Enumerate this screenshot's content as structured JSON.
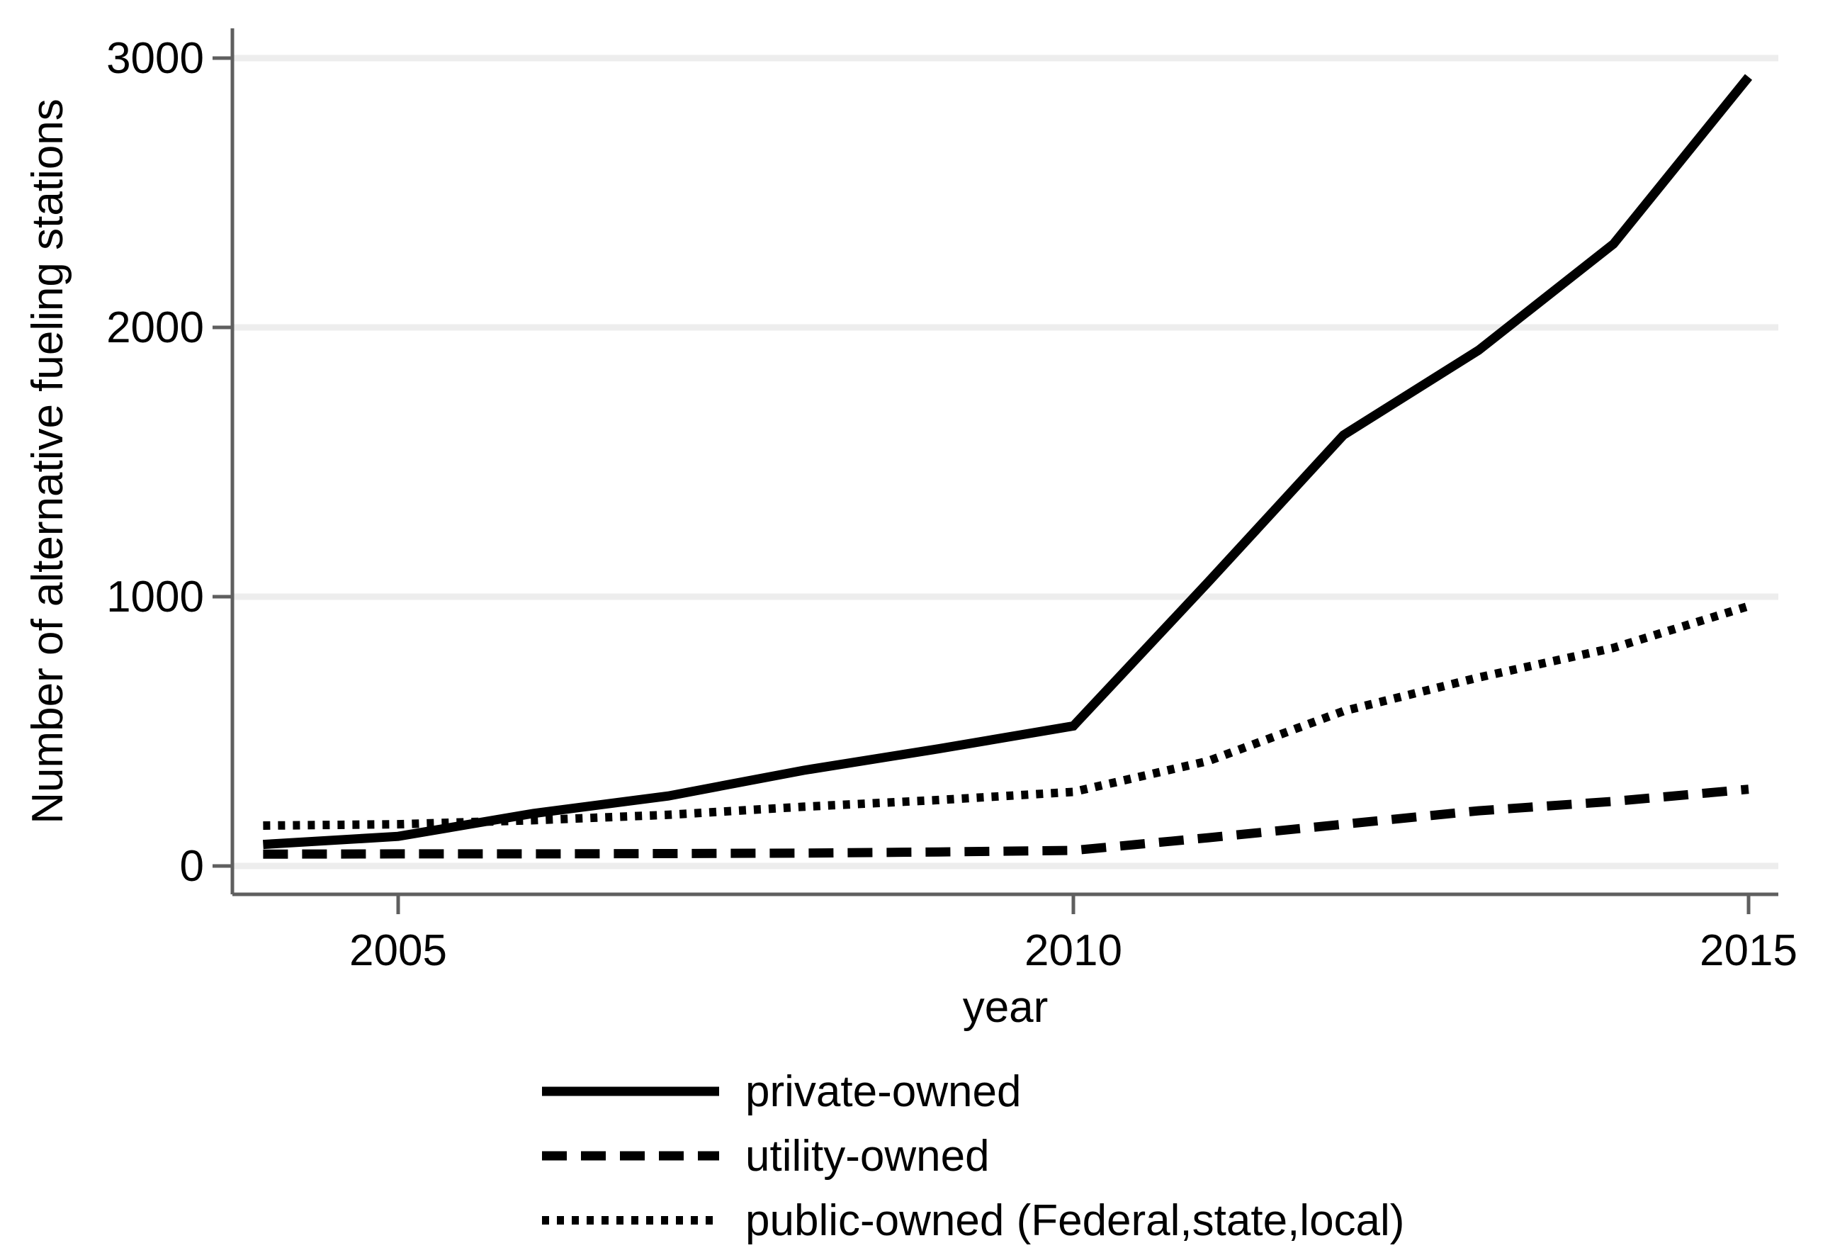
{
  "chart_data": {
    "type": "line",
    "title": "",
    "xlabel": "year",
    "ylabel": "Number of alternative fueling stations",
    "x": [
      2004,
      2005,
      2006,
      2007,
      2008,
      2009,
      2010,
      2011,
      2012,
      2013,
      2014,
      2015
    ],
    "series": [
      {
        "name": "private-owned",
        "style": "solid",
        "values": [
          80,
          110,
          195,
          260,
          355,
          435,
          520,
          1055,
          1600,
          1915,
          2310,
          2930
        ]
      },
      {
        "name": "utility-owned",
        "style": "dashed",
        "values": [
          44,
          45,
          45,
          46,
          48,
          52,
          58,
          105,
          155,
          205,
          240,
          285
        ]
      },
      {
        "name": "public-owned (Federal,state,local)",
        "style": "dotted",
        "values": [
          150,
          155,
          170,
          190,
          220,
          245,
          275,
          390,
          575,
          700,
          810,
          965
        ]
      }
    ],
    "xticks": [
      "2005",
      "2010",
      "2015"
    ],
    "xtick_years": [
      2005,
      2010,
      2015
    ],
    "yticks": [
      "0",
      "1000",
      "2000",
      "3000"
    ],
    "ytick_values": [
      0,
      1000,
      2000,
      3000
    ],
    "ylim": [
      0,
      3000
    ],
    "grid": "horizontal",
    "legend_position": "bottom",
    "line_color": "#000000",
    "axis_color": "#5f5f5f",
    "grid_color": "#ededed"
  }
}
